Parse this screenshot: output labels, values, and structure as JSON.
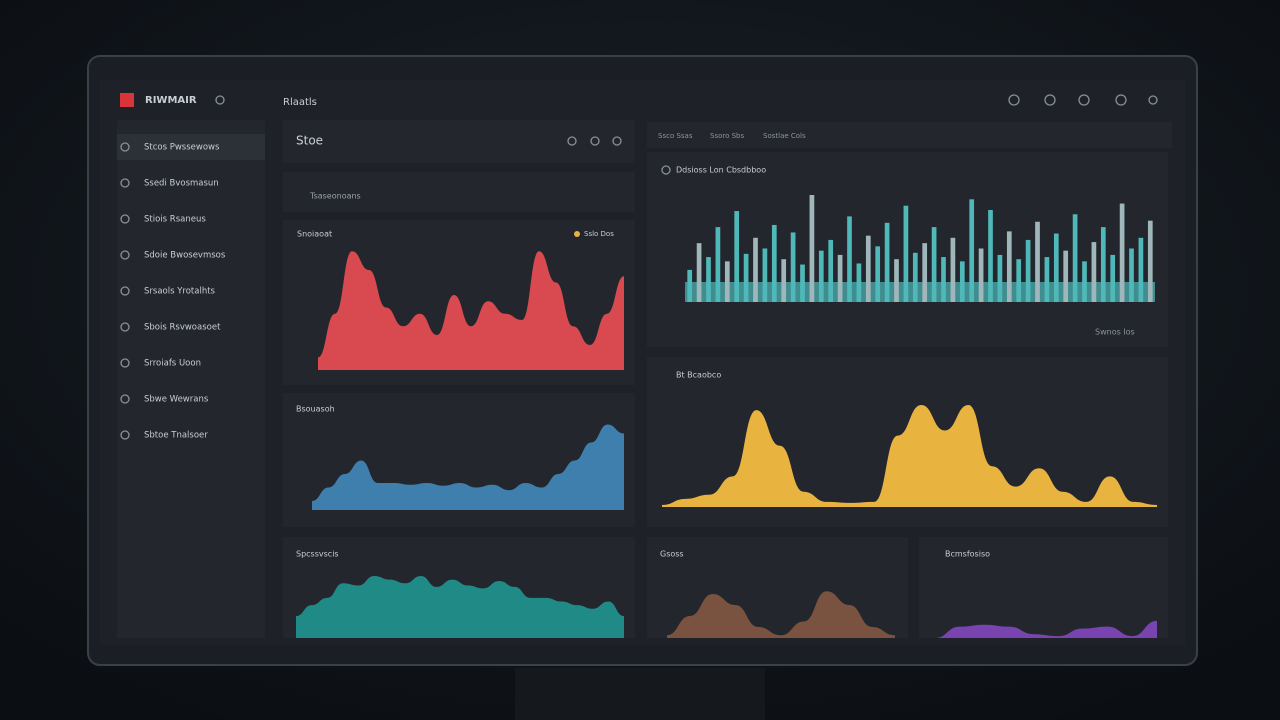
{
  "header": {
    "brand": "RIWMAIR",
    "crumb": "Rlaatls"
  },
  "sidebar": {
    "items": [
      "Stcos Pwssewows",
      "Ssedi Bvosmasun",
      "Stiois Rsaneus",
      "Sdoie Bwosevmsos",
      "Srsaols Yrotalhts",
      "Sbois Rsvwoasoet",
      "Srroiafs Uoon",
      "Sbwe Wewrans",
      "Sbtoe Tnalsoer"
    ]
  },
  "panel_header": {
    "title": "Stoe"
  },
  "search": {
    "placeholder": "Tsaseonoans"
  },
  "tabs": [
    "Ssco Ssas",
    "Ssoro Sbs",
    "Sostlae Cols"
  ],
  "bar_chart": {
    "title": "Ddsioss Lon Cbsdbboo",
    "note": "Swnos Ios",
    "color": "#4fb8b8",
    "ylim": [
      0,
      100
    ],
    "values": [
      30,
      55,
      42,
      70,
      38,
      85,
      45,
      60,
      50,
      72,
      40,
      65,
      35,
      100,
      48,
      58,
      44,
      80,
      36,
      62,
      52,
      74,
      40,
      90,
      46,
      55,
      70,
      42,
      60,
      38,
      96,
      50,
      86,
      44,
      66,
      40,
      58,
      75,
      42,
      64,
      48,
      82,
      38,
      56,
      70,
      44,
      92,
      50,
      60,
      76
    ]
  },
  "charts": [
    {
      "title": "Snoiaoat",
      "legend": "Sslo Dos",
      "color": "#d84a4f",
      "ylim": [
        0,
        100
      ],
      "values": [
        10,
        45,
        95,
        80,
        50,
        35,
        45,
        28,
        60,
        35,
        55,
        45,
        40,
        95,
        70,
        35,
        20,
        45,
        75
      ]
    },
    {
      "title": "Bsouasoh",
      "color": "#3e7fae",
      "ylim": [
        0,
        100
      ],
      "values": [
        10,
        25,
        40,
        55,
        30,
        30,
        28,
        30,
        27,
        30,
        25,
        28,
        22,
        30,
        25,
        40,
        55,
        75,
        95,
        85
      ]
    },
    {
      "title": "Spcssvscis",
      "color": "#1f8a86",
      "ylim": [
        0,
        100
      ],
      "values": [
        30,
        45,
        55,
        75,
        72,
        85,
        80,
        75,
        85,
        70,
        80,
        72,
        68,
        78,
        70,
        55,
        55,
        50,
        45,
        40,
        50,
        30
      ]
    },
    {
      "title": "Bt Bcaobco",
      "color": "#e9b340",
      "ylim": [
        0,
        100
      ],
      "values": [
        2,
        8,
        12,
        30,
        95,
        60,
        15,
        5,
        4,
        5,
        70,
        100,
        75,
        100,
        40,
        20,
        38,
        15,
        5,
        30,
        5,
        2
      ]
    },
    {
      "title": "Gsoss",
      "color": "#7a5240",
      "ylim": [
        0,
        100
      ],
      "values": [
        5,
        40,
        80,
        60,
        20,
        5,
        30,
        85,
        60,
        20,
        5
      ]
    },
    {
      "title": "Bcmsfosiso",
      "color": "#7a44b0",
      "ylim": [
        0,
        100
      ],
      "values": [
        0,
        30,
        35,
        30,
        10,
        5,
        25,
        30,
        5,
        45
      ]
    }
  ]
}
